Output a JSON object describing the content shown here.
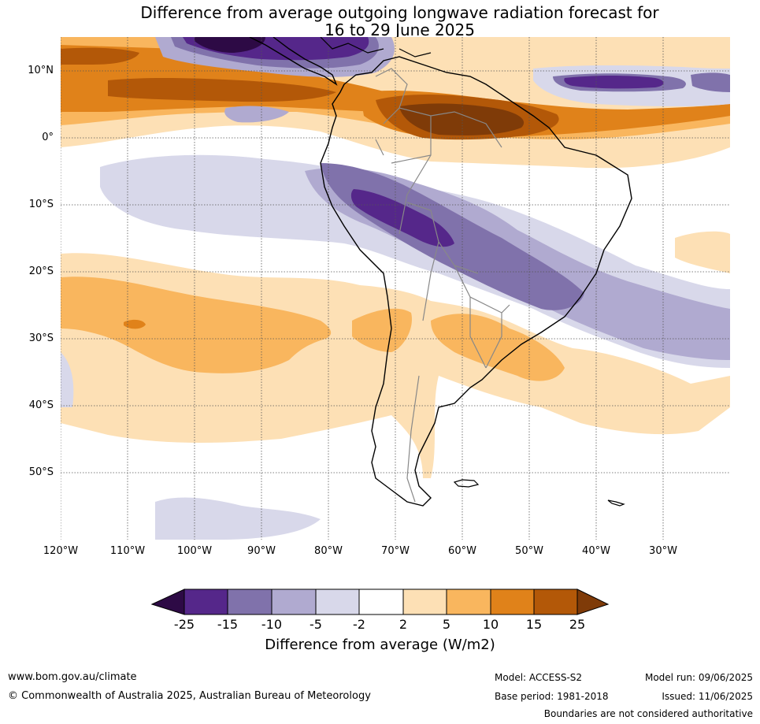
{
  "title": {
    "line1": "Difference from average outgoing longwave radiation forecast for",
    "line2": "16 to 29 June 2025"
  },
  "axes": {
    "lat_labels": [
      "10°N",
      "0°",
      "10°S",
      "20°S",
      "30°S",
      "40°S",
      "50°S"
    ],
    "lon_labels": [
      "120°W",
      "110°W",
      "100°W",
      "90°W",
      "80°W",
      "70°W",
      "60°W",
      "50°W",
      "40°W",
      "30°W"
    ]
  },
  "colorbar": {
    "ticks": [
      "-25",
      "-15",
      "-10",
      "-5",
      "-2",
      "2",
      "5",
      "10",
      "15",
      "25"
    ],
    "title": "Difference from average (W/m2)",
    "colors": {
      "below_min": "#2d0a45",
      "n25_15": "#55278a",
      "n15_10": "#8072ab",
      "n10_5": "#b0aad0",
      "n5_2": "#d8d8ea",
      "n2_2": "#ffffff",
      "p2_5": "#fde0b5",
      "p5_10": "#f9b65e",
      "p10_15": "#e0821a",
      "p15_25": "#b35808",
      "above_max": "#7f3b08"
    }
  },
  "footer": {
    "website": "www.bom.gov.au/climate",
    "copyright": "© Commonwealth of Australia 2025, Australian Bureau of Meteorology",
    "model": "Model: ACCESS-S2",
    "base_period": "Base period: 1981-2018",
    "model_run": "Model run: 09/06/2025",
    "issued": "Issued: 11/06/2025",
    "disclaimer": "Boundaries are not considered authoritative"
  }
}
